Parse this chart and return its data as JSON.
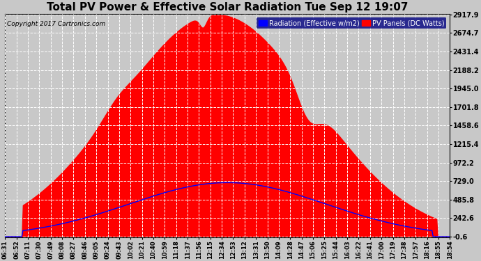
{
  "title": "Total PV Power & Effective Solar Radiation Tue Sep 12 19:07",
  "copyright": "Copyright 2017 Cartronics.com",
  "legend_radiation": "Radiation (Effective w/m2)",
  "legend_pv": "PV Panels (DC Watts)",
  "yticks": [
    -0.6,
    242.6,
    485.8,
    729.0,
    972.2,
    1215.4,
    1458.6,
    1701.8,
    1945.0,
    2188.2,
    2431.4,
    2674.7,
    2917.9
  ],
  "ylim_min": -0.6,
  "ylim_max": 2917.9,
  "background_color": "#c8c8c8",
  "plot_bg_color": "#c8c8c8",
  "title_color": "#000000",
  "title_fontsize": 11,
  "radiation_color": "#0000ff",
  "pv_color": "#ff0000",
  "grid_color": "#ffffff",
  "legend_bg": "#000080",
  "xtick_labels": [
    "06:31",
    "06:52",
    "07:11",
    "07:30",
    "07:49",
    "08:08",
    "08:27",
    "08:46",
    "09:05",
    "09:24",
    "09:43",
    "10:02",
    "10:21",
    "10:40",
    "10:59",
    "11:18",
    "11:37",
    "11:56",
    "12:15",
    "12:34",
    "12:53",
    "13:12",
    "13:31",
    "13:50",
    "14:09",
    "14:28",
    "14:47",
    "15:06",
    "15:25",
    "15:44",
    "16:03",
    "16:22",
    "16:41",
    "17:00",
    "17:19",
    "17:38",
    "17:57",
    "18:16",
    "18:55",
    "18:54"
  ]
}
